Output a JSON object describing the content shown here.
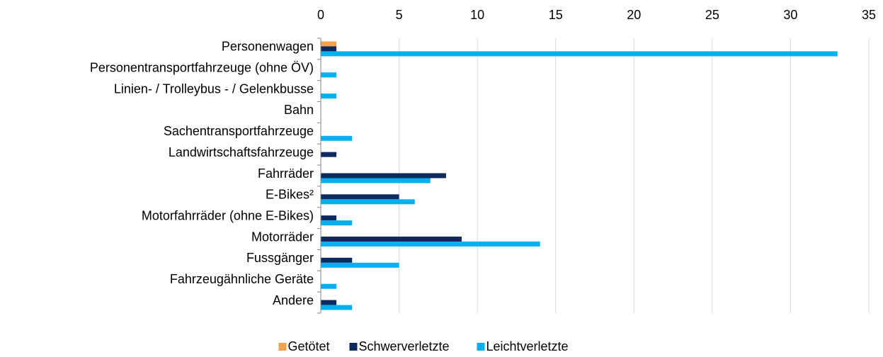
{
  "chart_data": {
    "type": "barh",
    "categories": [
      "Personenwagen",
      "Personentransportfahrzeuge (ohne ÖV)",
      "Linien- / Trolleybus - / Gelenkbusse",
      "Bahn",
      "Sachentransportfahrzeuge",
      "Landwirtschaftsfahrzeuge",
      "Fahrräder",
      "E-Bikes²",
      "Motorfahrräder (ohne E-Bikes)",
      "Motorräder",
      "Fussgänger",
      "Fahrzeugähnliche Geräte",
      "Andere"
    ],
    "series": [
      {
        "name": "Getötet",
        "color": "#f4a24a",
        "values": [
          1,
          0,
          0,
          0,
          0,
          0,
          0,
          0,
          0,
          0,
          0,
          0,
          0
        ]
      },
      {
        "name": "Schwerverletzte",
        "color": "#0d2a5e",
        "values": [
          1,
          0,
          0,
          0,
          0,
          1,
          8,
          5,
          1,
          9,
          2,
          0,
          1
        ]
      },
      {
        "name": "Leichtverletzte",
        "color": "#00b0f0",
        "values": [
          33,
          1,
          1,
          0,
          2,
          0,
          7,
          6,
          2,
          14,
          5,
          1,
          2
        ]
      }
    ],
    "xlim": [
      0,
      35
    ],
    "xticks": [
      0,
      5,
      10,
      15,
      20,
      25,
      30,
      35
    ],
    "grid": true,
    "legend": "bottom"
  }
}
